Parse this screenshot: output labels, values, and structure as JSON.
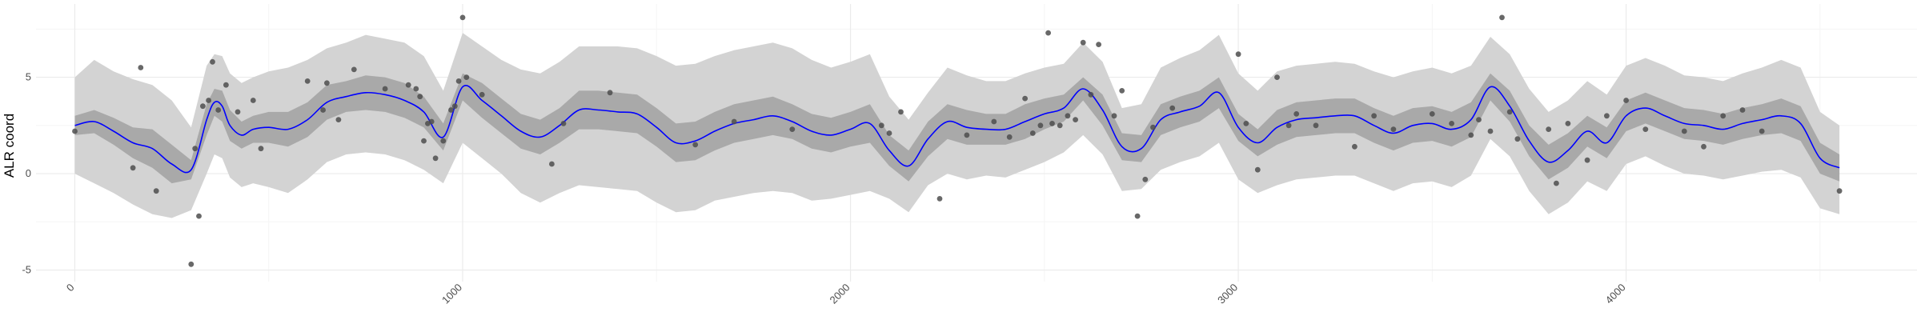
{
  "chart_data": {
    "type": "line",
    "title": "",
    "xlabel": "",
    "ylabel": "ALR coord",
    "xlim": [
      -100,
      4750
    ],
    "ylim": [
      -5.6,
      8.8
    ],
    "x_ticks": [
      0,
      1000,
      2000,
      3000,
      4000
    ],
    "y_ticks": [
      -5,
      0,
      5
    ],
    "x_minor_ticks": [
      500,
      1500,
      2500,
      3500,
      4500
    ],
    "y_minor_ticks": [
      -2.5,
      2.5,
      7.5
    ],
    "grid": true,
    "legend": "none",
    "colors": {
      "line": "#0000ff",
      "inner_band": "#a9a9a9",
      "outer_band": "#d3d3d3",
      "points": "#4d4d4d",
      "grid_major": "#ebebeb",
      "grid_minor": "#f5f5f5"
    },
    "series": [
      {
        "kind": "mean_line",
        "x": [
          0,
          50,
          100,
          150,
          200,
          250,
          300,
          340,
          360,
          380,
          400,
          430,
          460,
          500,
          550,
          600,
          650,
          700,
          750,
          800,
          850,
          900,
          950,
          1000,
          1050,
          1100,
          1150,
          1200,
          1250,
          1300,
          1350,
          1400,
          1450,
          1500,
          1550,
          1600,
          1650,
          1700,
          1750,
          1800,
          1850,
          1900,
          1950,
          2000,
          2050,
          2100,
          2150,
          2200,
          2250,
          2300,
          2350,
          2400,
          2450,
          2500,
          2550,
          2600,
          2650,
          2700,
          2750,
          2800,
          2850,
          2900,
          2950,
          3000,
          3050,
          3100,
          3150,
          3200,
          3250,
          3300,
          3350,
          3400,
          3450,
          3500,
          3550,
          3600,
          3650,
          3700,
          3750,
          3800,
          3850,
          3900,
          3950,
          4000,
          4050,
          4100,
          4150,
          4200,
          4250,
          4300,
          4350,
          4400,
          4450,
          4500,
          4550
        ],
        "y": [
          2.5,
          2.7,
          2.2,
          1.6,
          1.3,
          0.5,
          0.2,
          2.8,
          3.7,
          3.5,
          2.5,
          2.0,
          2.3,
          2.4,
          2.3,
          2.8,
          3.7,
          4.0,
          4.2,
          4.1,
          3.8,
          3.2,
          1.9,
          4.5,
          3.8,
          3.0,
          2.2,
          1.9,
          2.5,
          3.3,
          3.3,
          3.2,
          3.1,
          2.4,
          1.6,
          1.7,
          2.2,
          2.6,
          2.8,
          3.0,
          2.7,
          2.2,
          2.0,
          2.3,
          2.6,
          1.2,
          0.4,
          1.8,
          2.7,
          2.4,
          2.3,
          2.3,
          2.7,
          3.1,
          3.4,
          4.4,
          3.3,
          1.4,
          1.3,
          2.8,
          3.2,
          3.5,
          4.2,
          2.4,
          1.6,
          2.4,
          2.8,
          2.9,
          3.0,
          3.0,
          2.5,
          2.1,
          2.5,
          2.6,
          2.3,
          2.8,
          4.5,
          3.5,
          1.7,
          0.6,
          1.2,
          2.2,
          1.6,
          3.0,
          3.4,
          3.0,
          2.6,
          2.5,
          2.3,
          2.6,
          2.8,
          3.0,
          2.6,
          0.8,
          0.3
        ]
      },
      {
        "kind": "inner_band",
        "x": [
          0,
          50,
          100,
          150,
          200,
          250,
          300,
          340,
          360,
          380,
          400,
          430,
          460,
          500,
          550,
          600,
          650,
          700,
          750,
          800,
          850,
          900,
          950,
          1000,
          1050,
          1100,
          1150,
          1200,
          1250,
          1300,
          1350,
          1400,
          1450,
          1500,
          1550,
          1600,
          1650,
          1700,
          1750,
          1800,
          1850,
          1900,
          1950,
          2000,
          2050,
          2100,
          2150,
          2200,
          2250,
          2300,
          2350,
          2400,
          2450,
          2500,
          2550,
          2600,
          2650,
          2700,
          2750,
          2800,
          2850,
          2900,
          2950,
          3000,
          3050,
          3100,
          3150,
          3200,
          3250,
          3300,
          3350,
          3400,
          3450,
          3500,
          3550,
          3600,
          3650,
          3700,
          3750,
          3800,
          3850,
          3900,
          3950,
          4000,
          4050,
          4100,
          4150,
          4200,
          4250,
          4300,
          4350,
          4400,
          4450,
          4500,
          4550
        ],
        "lower": [
          2.0,
          2.1,
          1.5,
          0.8,
          0.3,
          -0.5,
          -0.3,
          2.0,
          3.0,
          2.7,
          1.7,
          1.3,
          1.6,
          1.6,
          1.4,
          1.9,
          2.8,
          3.2,
          3.3,
          3.2,
          2.9,
          2.4,
          1.2,
          3.8,
          2.9,
          2.1,
          1.3,
          1.0,
          1.6,
          2.3,
          2.3,
          2.2,
          2.1,
          1.4,
          0.6,
          0.7,
          1.2,
          1.6,
          1.8,
          2.0,
          1.8,
          1.3,
          1.1,
          1.4,
          1.6,
          0.4,
          -0.4,
          0.9,
          1.8,
          1.5,
          1.5,
          1.5,
          1.8,
          2.3,
          2.7,
          3.8,
          2.5,
          0.7,
          0.6,
          2.0,
          2.4,
          2.7,
          3.4,
          1.7,
          0.9,
          1.5,
          1.9,
          2.0,
          2.1,
          2.1,
          1.6,
          1.2,
          1.6,
          1.7,
          1.4,
          1.9,
          3.8,
          2.7,
          0.9,
          -0.3,
          0.3,
          1.4,
          0.8,
          2.2,
          2.6,
          2.2,
          1.8,
          1.7,
          1.5,
          1.8,
          2.0,
          2.1,
          1.7,
          0.0,
          -0.4
        ],
        "upper": [
          3.0,
          3.3,
          2.9,
          2.4,
          2.3,
          1.5,
          0.7,
          3.6,
          4.4,
          4.3,
          3.3,
          2.7,
          3.0,
          3.2,
          3.2,
          3.7,
          4.6,
          4.8,
          5.1,
          5.0,
          4.7,
          4.0,
          2.6,
          5.2,
          4.7,
          3.9,
          3.1,
          2.8,
          3.4,
          4.3,
          4.3,
          4.2,
          4.1,
          3.4,
          2.6,
          2.7,
          3.2,
          3.6,
          3.8,
          4.0,
          3.6,
          3.1,
          2.9,
          3.2,
          3.6,
          2.0,
          1.2,
          2.7,
          3.6,
          3.3,
          3.1,
          3.1,
          3.6,
          3.9,
          4.1,
          5.0,
          4.1,
          2.1,
          2.0,
          3.6,
          4.0,
          4.3,
          5.0,
          3.1,
          2.3,
          3.3,
          3.7,
          3.8,
          3.9,
          3.9,
          3.4,
          3.0,
          3.4,
          3.5,
          3.2,
          3.7,
          5.2,
          4.3,
          2.5,
          1.5,
          2.1,
          3.0,
          2.4,
          3.8,
          4.2,
          3.8,
          3.4,
          3.3,
          3.1,
          3.4,
          3.6,
          3.9,
          3.5,
          1.6,
          1.0
        ]
      },
      {
        "kind": "outer_band",
        "x": [
          0,
          50,
          100,
          150,
          200,
          250,
          300,
          340,
          360,
          380,
          400,
          430,
          460,
          500,
          550,
          600,
          650,
          700,
          750,
          800,
          850,
          900,
          950,
          1000,
          1050,
          1100,
          1150,
          1200,
          1250,
          1300,
          1350,
          1400,
          1450,
          1500,
          1550,
          1600,
          1650,
          1700,
          1750,
          1800,
          1850,
          1900,
          1950,
          2000,
          2050,
          2100,
          2150,
          2200,
          2250,
          2300,
          2350,
          2400,
          2450,
          2500,
          2550,
          2600,
          2650,
          2700,
          2750,
          2800,
          2850,
          2900,
          2950,
          3000,
          3050,
          3100,
          3150,
          3200,
          3250,
          3300,
          3350,
          3400,
          3450,
          3500,
          3550,
          3600,
          3650,
          3700,
          3750,
          3800,
          3850,
          3900,
          3950,
          4000,
          4050,
          4100,
          4150,
          4200,
          4250,
          4300,
          4350,
          4400,
          4450,
          4500,
          4550
        ],
        "lower": [
          0.0,
          -0.5,
          -1.0,
          -1.6,
          -2.1,
          -2.3,
          -1.9,
          0.0,
          1.0,
          0.8,
          -0.2,
          -0.7,
          -0.5,
          -0.7,
          -1.0,
          -0.3,
          0.6,
          1.0,
          1.1,
          1.0,
          0.7,
          0.2,
          -0.5,
          1.6,
          0.8,
          0.0,
          -1.0,
          -1.5,
          -1.0,
          -0.6,
          -0.7,
          -0.8,
          -0.9,
          -1.5,
          -2.0,
          -1.9,
          -1.4,
          -1.2,
          -1.0,
          -0.9,
          -1.0,
          -1.4,
          -1.3,
          -1.1,
          -0.9,
          -1.3,
          -2.0,
          -0.6,
          0.0,
          -0.3,
          -0.1,
          -0.2,
          0.2,
          0.6,
          1.1,
          2.0,
          1.0,
          -0.9,
          -0.8,
          0.2,
          0.6,
          0.9,
          1.6,
          -0.3,
          -1.0,
          -0.6,
          -0.3,
          -0.2,
          -0.1,
          -0.1,
          -0.5,
          -0.9,
          -0.5,
          -0.4,
          -0.7,
          -0.1,
          1.8,
          0.9,
          -0.9,
          -2.1,
          -1.5,
          -0.4,
          -0.9,
          0.5,
          0.9,
          0.4,
          0.0,
          -0.1,
          -0.3,
          -0.1,
          0.1,
          0.2,
          -0.2,
          -1.8,
          -2.1
        ],
        "upper": [
          5.0,
          5.9,
          5.3,
          4.9,
          4.6,
          3.8,
          2.4,
          5.6,
          6.2,
          6.1,
          5.2,
          4.7,
          5.0,
          5.3,
          5.5,
          5.9,
          6.5,
          6.8,
          7.2,
          7.0,
          6.8,
          6.1,
          4.3,
          7.3,
          6.6,
          5.9,
          5.4,
          5.2,
          5.8,
          6.6,
          6.6,
          6.6,
          6.5,
          6.1,
          5.6,
          5.7,
          6.1,
          6.4,
          6.6,
          6.8,
          6.5,
          5.9,
          5.5,
          5.8,
          6.2,
          4.0,
          2.8,
          4.2,
          5.5,
          5.1,
          4.8,
          4.8,
          5.2,
          5.5,
          5.7,
          6.8,
          5.8,
          3.4,
          3.6,
          5.5,
          6.0,
          6.4,
          7.2,
          5.2,
          4.3,
          5.3,
          5.6,
          5.7,
          5.8,
          5.7,
          5.3,
          5.0,
          5.3,
          5.5,
          5.2,
          5.6,
          7.1,
          6.2,
          4.4,
          3.2,
          3.8,
          4.8,
          4.1,
          5.6,
          6.0,
          5.6,
          5.1,
          5.0,
          4.8,
          5.2,
          5.5,
          5.9,
          5.5,
          3.2,
          2.5
        ]
      },
      {
        "kind": "observations",
        "x": [
          0,
          150,
          170,
          210,
          300,
          310,
          320,
          330,
          345,
          355,
          370,
          390,
          420,
          460,
          480,
          600,
          640,
          650,
          680,
          720,
          800,
          860,
          880,
          890,
          900,
          910,
          920,
          930,
          950,
          970,
          980,
          990,
          1000,
          1010,
          1050,
          1230,
          1260,
          1380,
          1600,
          1700,
          1850,
          2080,
          2100,
          2130,
          2230,
          2300,
          2370,
          2410,
          2450,
          2470,
          2490,
          2510,
          2520,
          2540,
          2560,
          2580,
          2600,
          2620,
          2640,
          2680,
          2700,
          2740,
          2760,
          2780,
          2830,
          3000,
          3020,
          3050,
          3100,
          3130,
          3150,
          3200,
          3300,
          3350,
          3400,
          3500,
          3550,
          3600,
          3620,
          3650,
          3680,
          3700,
          3720,
          3800,
          3820,
          3850,
          3900,
          3950,
          4000,
          4050,
          4150,
          4200,
          4250,
          4300,
          4350,
          4550
        ],
        "y": [
          2.2,
          0.3,
          5.5,
          -0.9,
          -4.7,
          1.3,
          -2.2,
          3.5,
          3.8,
          5.8,
          3.3,
          4.6,
          3.2,
          3.8,
          1.3,
          4.8,
          3.3,
          4.7,
          2.8,
          5.4,
          4.4,
          4.6,
          4.4,
          4.0,
          1.7,
          2.6,
          2.7,
          0.8,
          1.7,
          3.3,
          3.5,
          4.8,
          8.1,
          5.0,
          4.1,
          0.5,
          2.6,
          4.2,
          1.5,
          2.7,
          2.3,
          2.5,
          2.1,
          3.2,
          -1.3,
          2.0,
          2.7,
          1.9,
          3.9,
          2.1,
          2.5,
          7.3,
          2.6,
          2.5,
          3.0,
          2.8,
          6.8,
          4.1,
          6.7,
          3.0,
          4.3,
          -2.2,
          -0.3,
          2.4,
          3.4,
          6.2,
          2.6,
          0.2,
          5.0,
          2.5,
          3.1,
          2.5,
          1.4,
          3.0,
          2.3,
          3.1,
          2.6,
          2.0,
          2.8,
          2.2,
          8.1,
          3.2,
          1.8,
          2.3,
          -0.5,
          2.6,
          0.7,
          3.0,
          3.8,
          2.3,
          2.2,
          1.4,
          3.0,
          3.3,
          2.2,
          -0.9
        ]
      }
    ]
  }
}
